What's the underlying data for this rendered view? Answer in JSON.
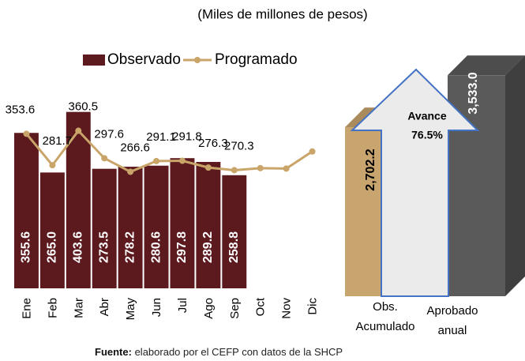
{
  "title": "(Miles de millones de pesos)",
  "source": {
    "label": "Fuente:",
    "text": "elaborado por el CEFP con datos de la SHCP"
  },
  "chart_data": [
    {
      "type": "bar_line",
      "categories": [
        "Ene",
        "Feb",
        "Mar",
        "Abr",
        "May",
        "Jun",
        "Jul",
        "Ago",
        "Sep",
        "Oct",
        "Nov",
        "Dic"
      ],
      "series": [
        {
          "name": "Observado",
          "type": "bar",
          "color": "#5c1a1f",
          "values": [
            355.6,
            265.0,
            403.6,
            273.5,
            278.2,
            280.6,
            297.8,
            289.2,
            258.8,
            null,
            null,
            null
          ],
          "value_labels": [
            "355.6",
            "265.0",
            "403.6",
            "273.5",
            "278.2",
            "280.6",
            "297.8",
            "289.2",
            "258.8",
            null,
            null,
            null
          ]
        },
        {
          "name": "Programado",
          "type": "line",
          "color": "#c9a56a",
          "values": [
            353.6,
            281.7,
            360.5,
            297.6,
            266.6,
            291.1,
            291.8,
            276.3,
            270.3,
            275,
            274,
            313
          ],
          "value_labels": [
            "353.6",
            "281.7",
            "360.5",
            "297.6",
            "266.6",
            "291.1",
            "291.8",
            "276.3",
            "270.3",
            null,
            null,
            null
          ]
        }
      ],
      "ylim": [
        0,
        450
      ]
    },
    {
      "type": "bar3d",
      "categories": [
        "Obs. Acumulado",
        "Aprobado anual"
      ],
      "values": [
        2702.2,
        3533.0
      ],
      "value_labels": [
        "2,702.2",
        "3,533.0"
      ],
      "colors": [
        "#c8a46e",
        "#5a5a5a"
      ],
      "annotation": {
        "title": "Avance",
        "value": 76.5,
        "label": "76.5%"
      },
      "ylim": [
        0,
        3600
      ]
    }
  ]
}
